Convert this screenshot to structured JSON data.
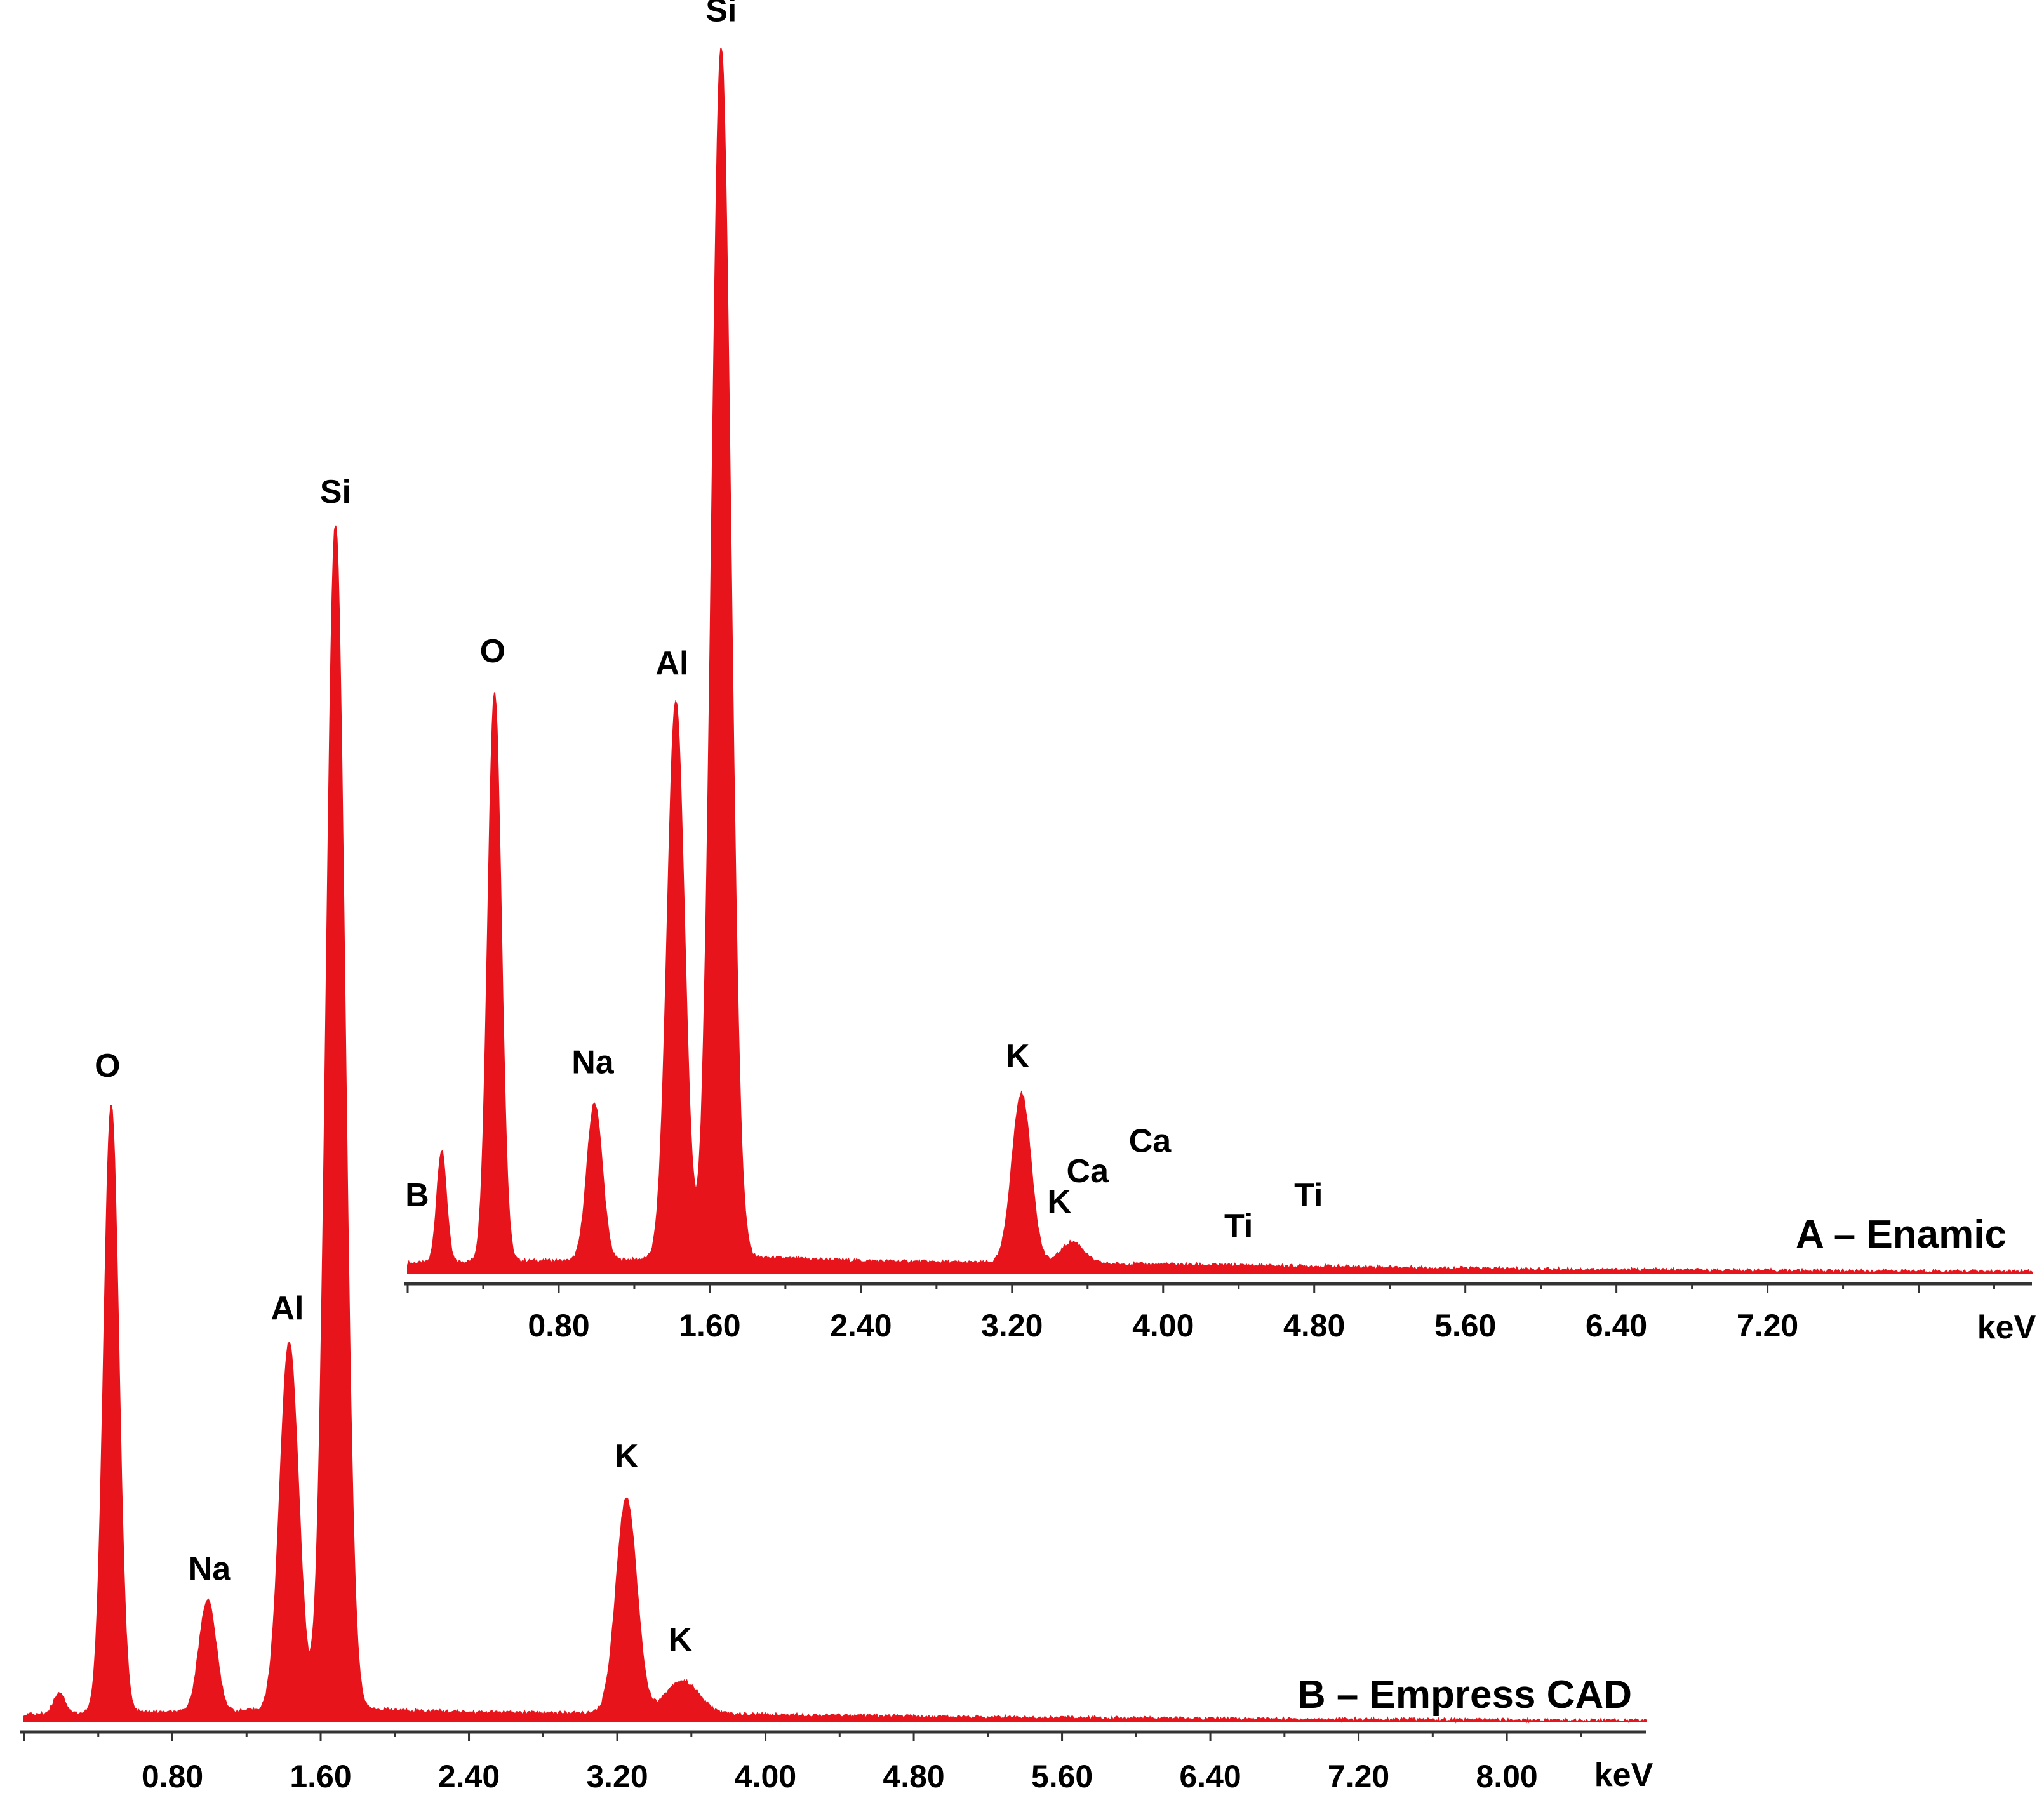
{
  "chart_data": [
    {
      "type": "area",
      "title": "A – Enamic",
      "xlabel": "keV",
      "ylabel": "",
      "xlim": [
        0,
        8.6
      ],
      "ylim": [
        0,
        1000
      ],
      "grid": false,
      "color": "#e8141c",
      "tick_values": [
        0.8,
        1.6,
        2.4,
        3.2,
        4.0,
        4.8,
        5.6,
        6.4,
        7.2
      ],
      "tick_labels": [
        "0.80",
        "1.60",
        "2.40",
        "3.20",
        "4.00",
        "4.80",
        "5.60",
        "6.40",
        "7.20"
      ],
      "baseline": [
        [
          0.0,
          8
        ],
        [
          0.5,
          10
        ],
        [
          1.0,
          10
        ],
        [
          1.4,
          12
        ],
        [
          1.6,
          14
        ],
        [
          2.4,
          10
        ],
        [
          3.2,
          8
        ],
        [
          4.0,
          7
        ],
        [
          5.0,
          5
        ],
        [
          6.0,
          3
        ],
        [
          7.0,
          2
        ],
        [
          8.6,
          1
        ]
      ],
      "peaks": [
        {
          "element": "B",
          "energy": 0.18,
          "counts": 92,
          "width": 0.025
        },
        {
          "element": "O",
          "energy": 0.46,
          "counts": 470,
          "width": 0.035
        },
        {
          "element": "Na",
          "energy": 0.99,
          "counts": 130,
          "width": 0.04
        },
        {
          "element": "Al",
          "energy": 1.42,
          "counts": 460,
          "width": 0.045
        },
        {
          "element": "Si",
          "energy": 1.66,
          "counts": 1000,
          "width": 0.05
        },
        {
          "element": "K",
          "energy": 3.25,
          "counts": 140,
          "width": 0.05
        },
        {
          "element": "K",
          "energy": 3.52,
          "counts": 18,
          "width": 0.06
        }
      ],
      "labels": [
        {
          "text": "B",
          "energy": 0.05,
          "counts": 55
        },
        {
          "text": "O",
          "energy": 0.45,
          "counts": 505
        },
        {
          "text": "Na",
          "energy": 0.98,
          "counts": 165
        },
        {
          "text": "Al",
          "energy": 1.4,
          "counts": 495
        },
        {
          "text": "Si",
          "energy": 1.66,
          "counts": 1035
        },
        {
          "text": "K",
          "energy": 3.23,
          "counts": 170
        },
        {
          "text": "K",
          "energy": 3.45,
          "counts": 50
        },
        {
          "text": "Ca",
          "energy": 3.6,
          "counts": 75
        },
        {
          "text": "Ca",
          "energy": 3.93,
          "counts": 100
        },
        {
          "text": "Ti",
          "energy": 4.4,
          "counts": 30
        },
        {
          "text": "Ti",
          "energy": 4.77,
          "counts": 55
        }
      ]
    },
    {
      "type": "area",
      "title": "B – Empress CAD",
      "xlabel": "keV",
      "ylabel": "",
      "xlim": [
        0,
        8.75
      ],
      "ylim": [
        0,
        1000
      ],
      "grid": false,
      "color": "#e8141c",
      "tick_values": [
        0.8,
        1.6,
        2.4,
        3.2,
        4.0,
        4.8,
        5.6,
        6.4,
        7.2,
        8.0
      ],
      "tick_labels": [
        "0.80",
        "1.60",
        "2.40",
        "3.20",
        "4.00",
        "4.80",
        "5.60",
        "6.40",
        "7.20",
        "8.00"
      ],
      "baseline": [
        [
          0.0,
          6
        ],
        [
          0.5,
          8
        ],
        [
          1.0,
          8
        ],
        [
          1.6,
          12
        ],
        [
          2.4,
          8
        ],
        [
          3.2,
          7
        ],
        [
          4.0,
          6
        ],
        [
          5.0,
          4
        ],
        [
          6.0,
          3
        ],
        [
          7.0,
          2
        ],
        [
          8.75,
          1
        ]
      ],
      "peaks": [
        {
          "element": "",
          "energy": 0.19,
          "counts": 18,
          "width": 0.03
        },
        {
          "element": "O",
          "energy": 0.47,
          "counts": 513,
          "width": 0.04
        },
        {
          "element": "Na",
          "energy": 0.99,
          "counts": 95,
          "width": 0.045
        },
        {
          "element": "Al",
          "energy": 1.43,
          "counts": 310,
          "width": 0.05
        },
        {
          "element": "Si",
          "energy": 1.68,
          "counts": 1000,
          "width": 0.05
        },
        {
          "element": "K",
          "energy": 3.25,
          "counts": 182,
          "width": 0.055
        },
        {
          "element": "K",
          "energy": 3.55,
          "counts": 28,
          "width": 0.09
        }
      ],
      "labels": [
        {
          "text": "O",
          "energy": 0.45,
          "counts": 545
        },
        {
          "text": "Na",
          "energy": 1.0,
          "counts": 120
        },
        {
          "text": "Al",
          "energy": 1.42,
          "counts": 340
        },
        {
          "text": "Si",
          "energy": 1.68,
          "counts": 1030
        },
        {
          "text": "K",
          "energy": 3.25,
          "counts": 215
        },
        {
          "text": "K",
          "energy": 3.54,
          "counts": 60
        }
      ]
    }
  ]
}
